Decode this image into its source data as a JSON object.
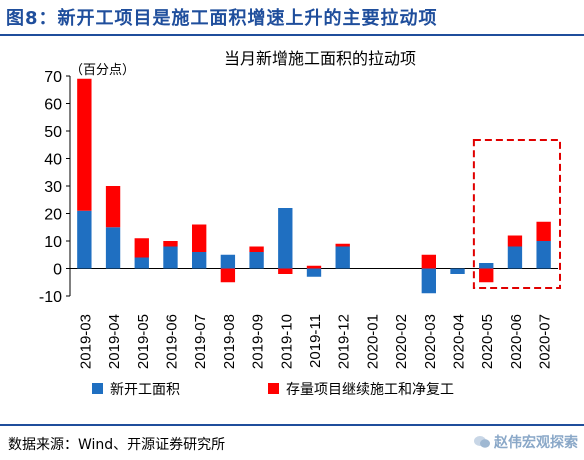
{
  "figure": {
    "label": "图8：新开工项目是施工面积增速上升的主要拉动项"
  },
  "source": {
    "text": "数据来源：Wind、开源证券研究所",
    "watermark": "赵伟宏观探索"
  },
  "chart_data": {
    "type": "bar",
    "stacked": true,
    "title": "当月新增施工面积的拉动项",
    "unit_label": "（百分点）",
    "categories": [
      "2019-03",
      "2019-04",
      "2019-05",
      "2019-06",
      "2019-07",
      "2019-08",
      "2019-09",
      "2019-10",
      "2019-11",
      "2019-12",
      "2020-01",
      "2020-02",
      "2020-03",
      "2020-04",
      "2020-05",
      "2020-06",
      "2020-07"
    ],
    "series": [
      {
        "name": "新开工面积",
        "color": "#1f6fc1",
        "values": [
          21,
          15,
          4,
          8,
          6,
          5,
          6,
          22,
          -3,
          8,
          null,
          null,
          -9,
          -2,
          2,
          8,
          10
        ]
      },
      {
        "name": "存量项目继续施工和净复工",
        "color": "#ff0000",
        "values": [
          48,
          15,
          7,
          2,
          10,
          -5,
          2,
          -2,
          1,
          1,
          null,
          null,
          5,
          0,
          -5,
          4,
          7
        ]
      }
    ],
    "ylim": [
      -10,
      70
    ],
    "yticks": [
      -10,
      0,
      10,
      20,
      30,
      40,
      50,
      60,
      70
    ],
    "legend_position": "bottom",
    "annotation": "dashed red box highlighting 2020-05 to 2020-07"
  }
}
